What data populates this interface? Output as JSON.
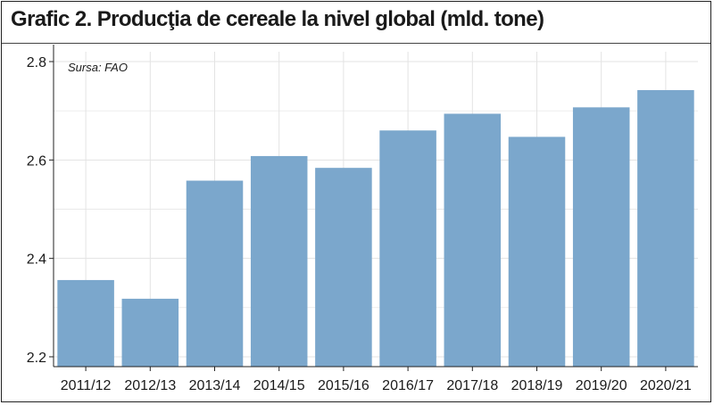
{
  "chart_data": {
    "type": "bar",
    "title": "Grafic 2. Producţia de cereale la nivel global (mld. tone)",
    "source_note": "Sursa: FAO",
    "categories": [
      "2011/12",
      "2012/13",
      "2013/14",
      "2014/15",
      "2015/16",
      "2016/17",
      "2017/18",
      "2018/19",
      "2019/20",
      "2020/21"
    ],
    "values": [
      2.356,
      2.318,
      2.558,
      2.608,
      2.584,
      2.66,
      2.694,
      2.647,
      2.707,
      2.742
    ],
    "y_ticks": [
      "2.2",
      "2.4",
      "2.6",
      "2.8"
    ],
    "ylim": [
      2.18,
      2.82
    ],
    "xlabel": "",
    "ylabel": "",
    "grid": true,
    "bar_color": "#7ba7cc",
    "grid_color": "#e3e3e3",
    "axis_color": "#222222"
  }
}
